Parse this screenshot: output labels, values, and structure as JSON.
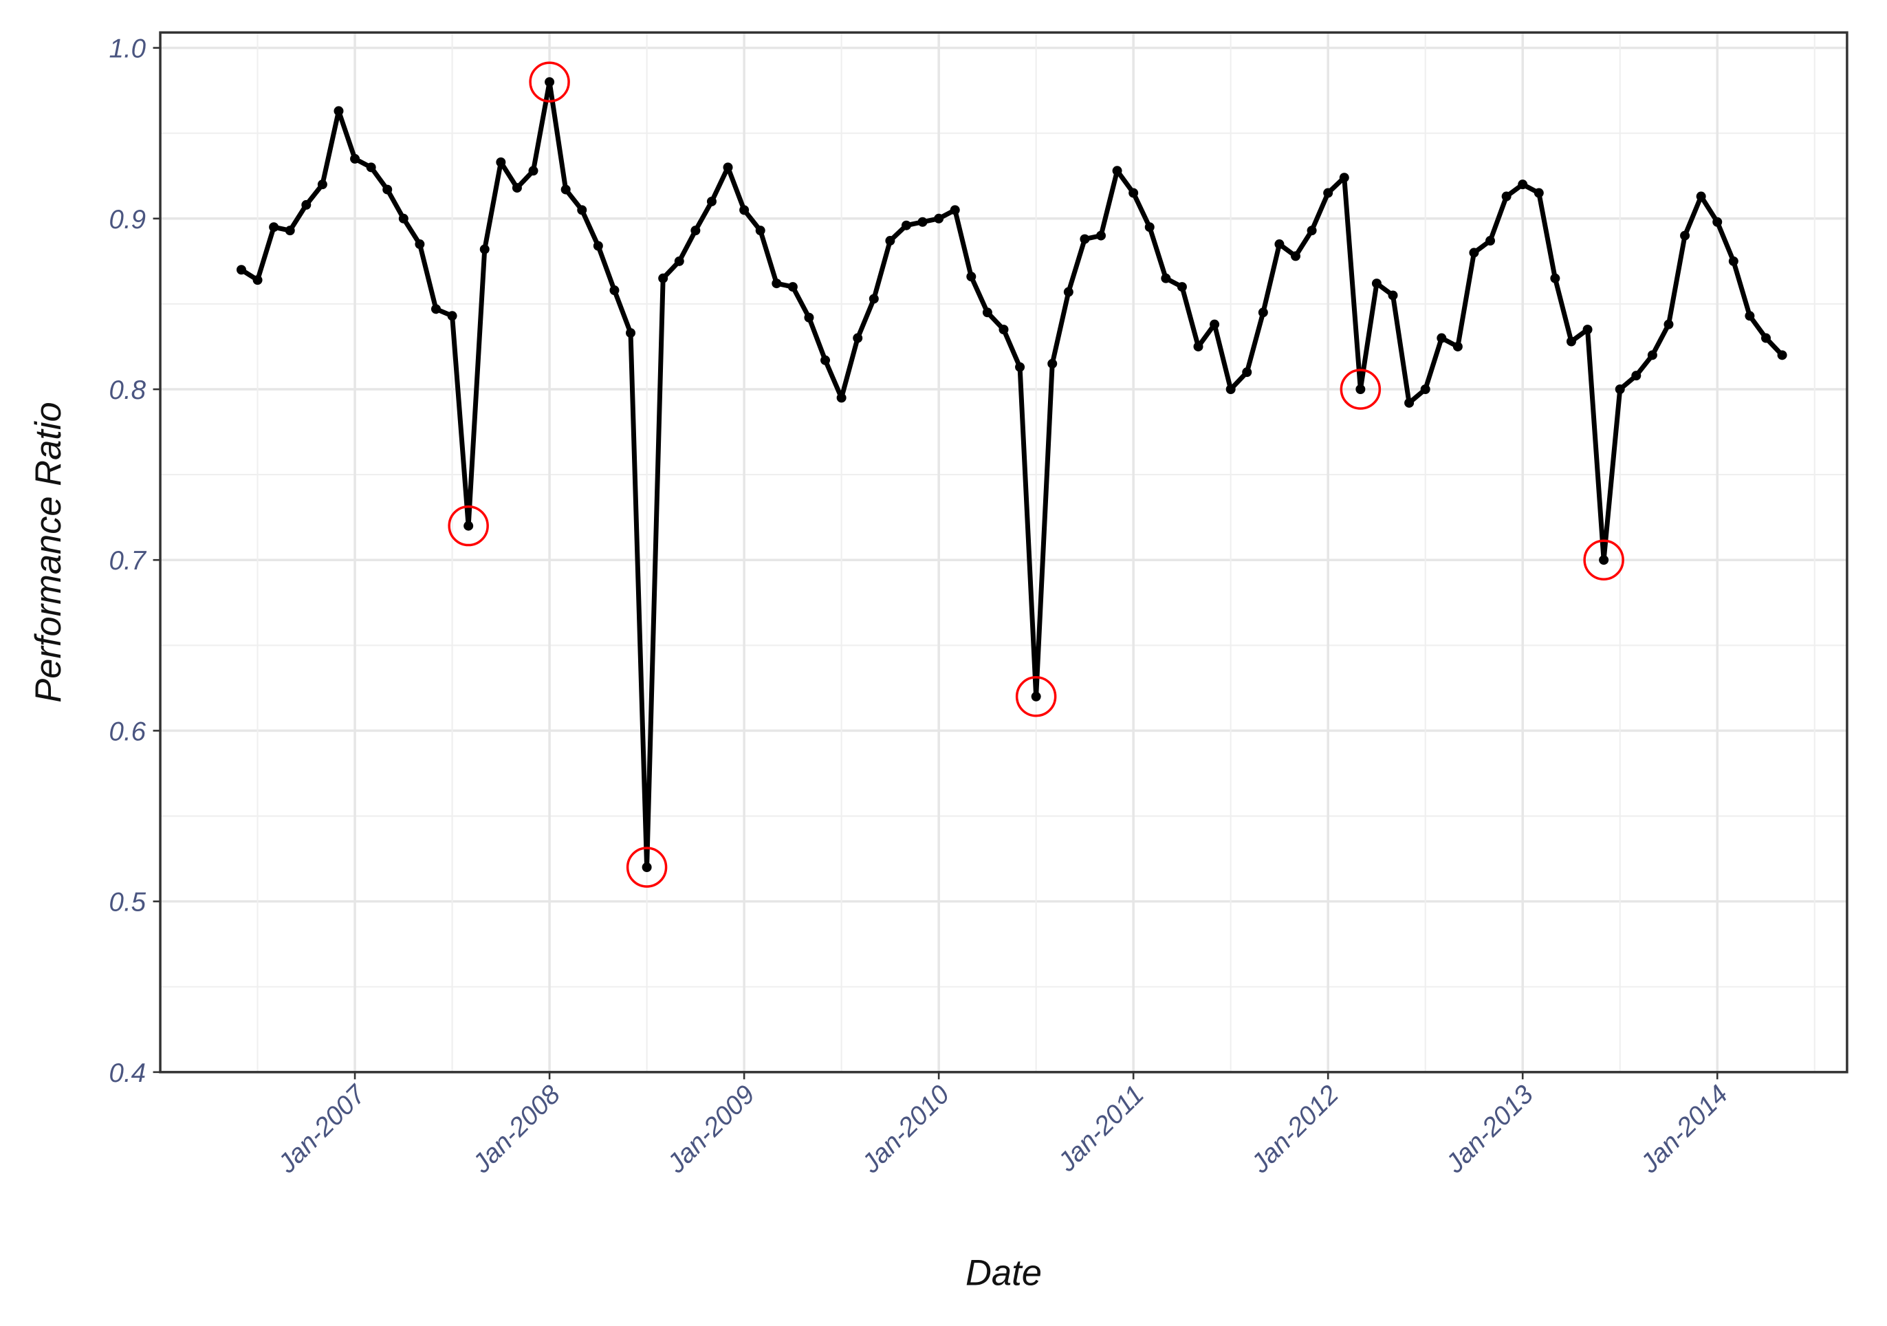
{
  "chart_data": {
    "type": "line",
    "x_label": "Date",
    "y_label": "Performance Ratio",
    "x": [
      "2006-06",
      "2006-07",
      "2006-08",
      "2006-09",
      "2006-10",
      "2006-11",
      "2006-12",
      "2007-01",
      "2007-02",
      "2007-03",
      "2007-04",
      "2007-05",
      "2007-06",
      "2007-07",
      "2007-08",
      "2007-09",
      "2007-10",
      "2007-11",
      "2007-12",
      "2008-01",
      "2008-02",
      "2008-03",
      "2008-04",
      "2008-05",
      "2008-06",
      "2008-07",
      "2008-08",
      "2008-09",
      "2008-10",
      "2008-11",
      "2008-12",
      "2009-01",
      "2009-02",
      "2009-03",
      "2009-04",
      "2009-05",
      "2009-06",
      "2009-07",
      "2009-08",
      "2009-09",
      "2009-10",
      "2009-11",
      "2009-12",
      "2010-01",
      "2010-02",
      "2010-03",
      "2010-04",
      "2010-05",
      "2010-06",
      "2010-07",
      "2010-08",
      "2010-09",
      "2010-10",
      "2010-11",
      "2010-12",
      "2011-01",
      "2011-02",
      "2011-03",
      "2011-04",
      "2011-05",
      "2011-06",
      "2011-07",
      "2011-08",
      "2011-09",
      "2011-10",
      "2011-11",
      "2011-12",
      "2012-01",
      "2012-02",
      "2012-03",
      "2012-04",
      "2012-05",
      "2012-06",
      "2012-07",
      "2012-08",
      "2012-09",
      "2012-10",
      "2012-11",
      "2012-12",
      "2013-01",
      "2013-02",
      "2013-03",
      "2013-04",
      "2013-05",
      "2013-06",
      "2013-07",
      "2013-08",
      "2013-09",
      "2013-10",
      "2013-11",
      "2013-12",
      "2014-01",
      "2014-02",
      "2014-03",
      "2014-04",
      "2014-05"
    ],
    "series": [
      {
        "color": "#000000",
        "values": [
          0.87,
          0.864,
          0.895,
          0.893,
          0.908,
          0.92,
          0.963,
          0.935,
          0.93,
          0.917,
          0.9,
          0.885,
          0.847,
          0.843,
          0.72,
          0.882,
          0.933,
          0.918,
          0.928,
          0.98,
          0.917,
          0.905,
          0.884,
          0.858,
          0.833,
          0.52,
          0.865,
          0.875,
          0.893,
          0.91,
          0.93,
          0.905,
          0.893,
          0.862,
          0.86,
          0.842,
          0.817,
          0.795,
          0.83,
          0.853,
          0.887,
          0.896,
          0.898,
          0.9,
          0.905,
          0.866,
          0.845,
          0.835,
          0.813,
          0.62,
          0.815,
          0.857,
          0.888,
          0.89,
          0.928,
          0.915,
          0.895,
          0.865,
          0.86,
          0.825,
          0.838,
          0.8,
          0.81,
          0.845,
          0.885,
          0.878,
          0.893,
          0.915,
          0.924,
          0.8,
          0.862,
          0.855,
          0.792,
          0.8,
          0.83,
          0.825,
          0.88,
          0.887,
          0.913,
          0.92,
          0.915,
          0.865,
          0.828,
          0.835,
          0.7,
          0.8,
          0.808,
          0.82,
          0.838,
          0.89,
          0.913,
          0.898,
          0.875,
          0.843,
          0.83,
          0.82
        ]
      },
      {
        "color": "#ff0000",
        "marker": "open-circle",
        "values": [
          null,
          null,
          null,
          null,
          null,
          null,
          null,
          null,
          null,
          null,
          null,
          null,
          null,
          null,
          0.72,
          null,
          null,
          null,
          null,
          0.98,
          null,
          null,
          null,
          null,
          null,
          0.52,
          null,
          null,
          null,
          null,
          null,
          null,
          null,
          null,
          null,
          null,
          null,
          null,
          null,
          null,
          null,
          null,
          null,
          null,
          null,
          null,
          null,
          null,
          null,
          0.62,
          null,
          null,
          null,
          null,
          null,
          null,
          null,
          null,
          null,
          null,
          null,
          null,
          null,
          null,
          null,
          null,
          null,
          null,
          null,
          0.8,
          null,
          null,
          null,
          null,
          null,
          null,
          null,
          null,
          null,
          null,
          null,
          null,
          null,
          null,
          0.7,
          null,
          null,
          null,
          null,
          null,
          null,
          null,
          null,
          null,
          null,
          null
        ]
      }
    ],
    "xlim": [
      "2006-01",
      "2014-09"
    ],
    "xticks": [
      {
        "value": "2007-01",
        "label": "Jan-2007"
      },
      {
        "value": "2008-01",
        "label": "Jan-2008"
      },
      {
        "value": "2009-01",
        "label": "Jan-2009"
      },
      {
        "value": "2010-01",
        "label": "Jan-2010"
      },
      {
        "value": "2011-01",
        "label": "Jan-2011"
      },
      {
        "value": "2012-01",
        "label": "Jan-2012"
      },
      {
        "value": "2013-01",
        "label": "Jan-2013"
      },
      {
        "value": "2014-01",
        "label": "Jan-2014"
      }
    ],
    "ylim": [
      0.4,
      1.009
    ],
    "yticks": [
      0.4,
      0.5,
      0.6,
      0.7,
      0.8,
      0.9,
      {
        "value": 1,
        "label": "1.0"
      }
    ],
    "grid": true,
    "minor_grid": true
  }
}
